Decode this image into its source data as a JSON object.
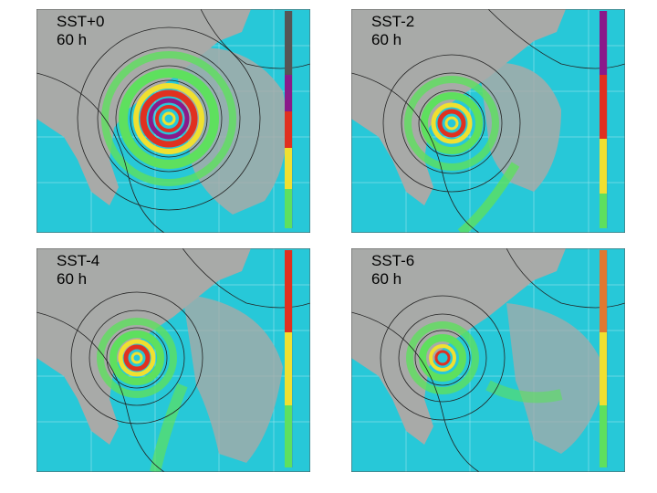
{
  "panels": [
    {
      "id": "sst0",
      "line1": "SST+0",
      "line2": "60 h"
    },
    {
      "id": "sst2",
      "line1": "SST-2",
      "line2": "60 h"
    },
    {
      "id": "sst4",
      "line1": "SST-4",
      "line2": "60 h"
    },
    {
      "id": "sst6",
      "line1": "SST-6",
      "line2": "60 h"
    }
  ],
  "colors": {
    "ocean": "#27c8d8",
    "land": "#a8aaa8",
    "precip_light": "#5ee05e",
    "precip_mid": "#f0e030",
    "precip_heavy": "#e03020",
    "precip_extreme": "#8a1a8a",
    "contour": "#222222"
  }
}
